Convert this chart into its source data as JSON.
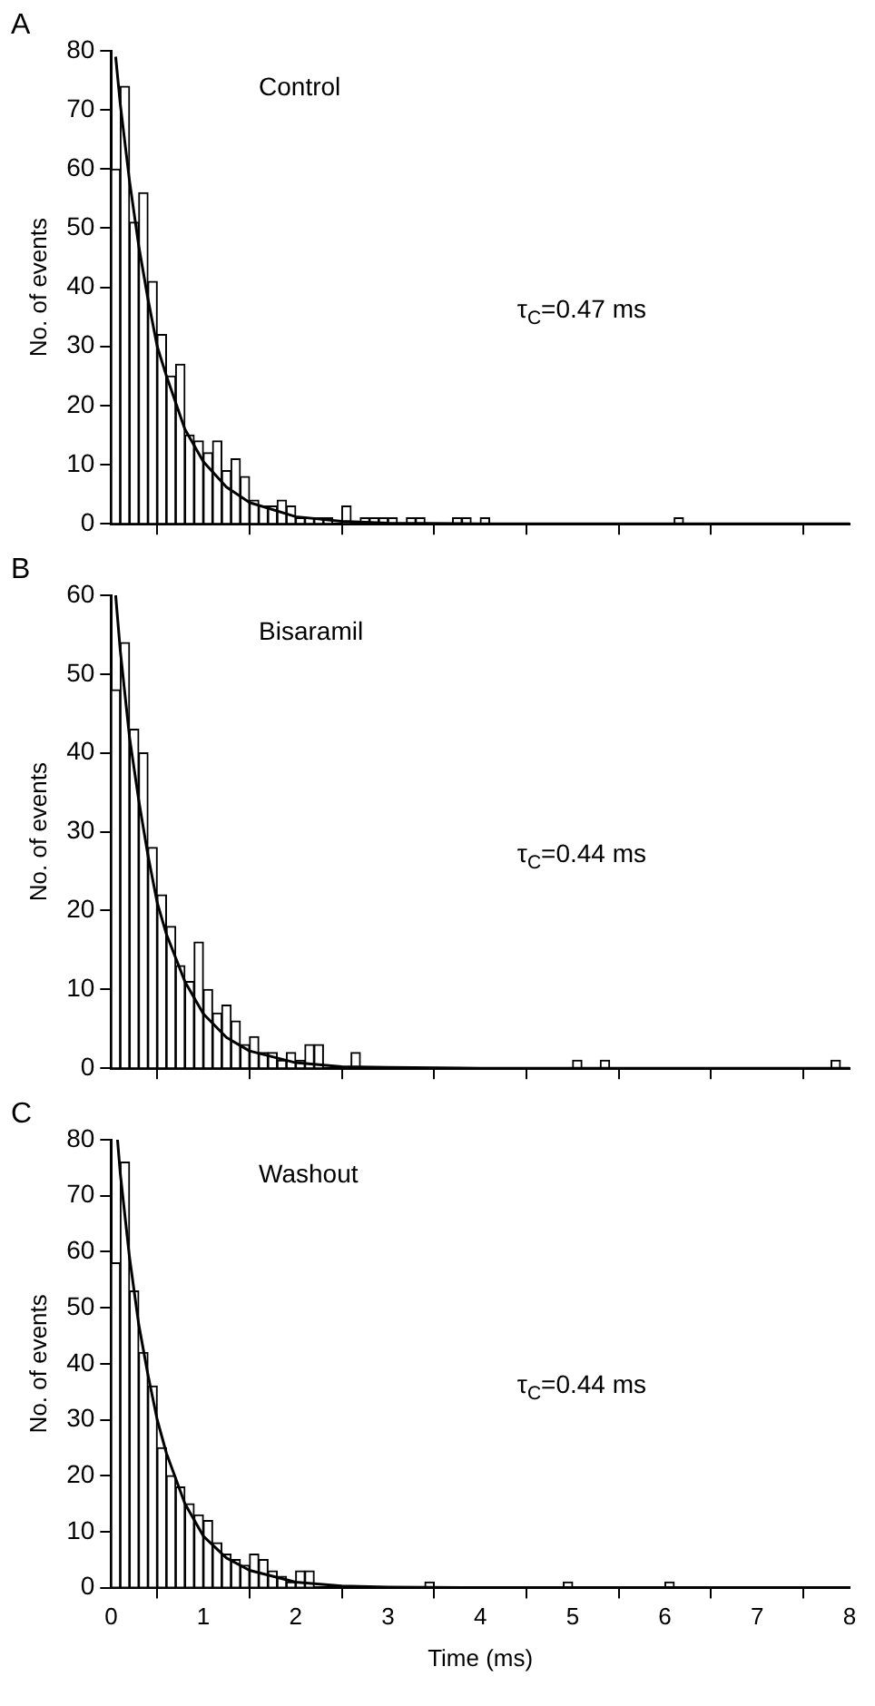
{
  "chart_data": [
    {
      "type": "histogram",
      "title": "A",
      "ylabel": "No. of events",
      "annotations": [
        "Control",
        "τ$_{C}$=0.47 ms"
      ],
      "color": "#ffffff",
      "legend": false,
      "grid": false,
      "tick_labels": "y",
      "xlim": [
        0,
        8
      ],
      "xticks": [
        0,
        1,
        2,
        3,
        4,
        5,
        6,
        7,
        8
      ],
      "ylim": [
        0,
        80
      ],
      "yticks": [
        0,
        10,
        20,
        30,
        40,
        50,
        60,
        70,
        80
      ],
      "bins": [
        0,
        0.1,
        0.2,
        0.3,
        0.4,
        0.5,
        0.6,
        0.7,
        0.8,
        0.9,
        1,
        1.1,
        1.2,
        1.3,
        1.4,
        1.5,
        1.6,
        1.7,
        1.8,
        1.9,
        2,
        2.1,
        2.2,
        2.3,
        2.4,
        2.5,
        2.6,
        2.7,
        2.8,
        2.9,
        3,
        3.1,
        3.2,
        3.3,
        3.4,
        3.5,
        3.6,
        3.7,
        3.8,
        3.9,
        4,
        4.1,
        4.2,
        4.3,
        4.4,
        4.5,
        4.6,
        4.7,
        4.8,
        4.9,
        5,
        5.1,
        5.2,
        5.3,
        5.4,
        5.5,
        5.6,
        5.7,
        5.8,
        5.9,
        6,
        6.1,
        6.2,
        6.3,
        6.4,
        6.5,
        6.6,
        6.7,
        6.8,
        6.9,
        7,
        7.1,
        7.2,
        7.3,
        7.4,
        7.5,
        7.6,
        7.7,
        7.8,
        7.9,
        8
      ],
      "values": [
        60,
        74,
        51,
        56,
        41,
        32,
        25,
        27,
        15,
        14,
        12,
        14,
        9,
        11,
        8,
        4,
        3,
        3,
        4,
        3,
        1,
        1,
        1,
        1,
        0,
        3,
        0,
        1,
        1,
        1,
        1,
        0,
        1,
        1,
        0,
        0,
        0,
        1,
        1,
        0,
        1,
        0,
        0,
        0,
        0,
        0,
        0,
        0,
        0,
        0,
        0,
        0,
        0,
        0,
        0,
        0,
        0,
        0,
        0,
        0,
        0,
        1,
        0,
        0,
        0,
        0,
        0,
        0,
        0,
        0,
        0,
        0,
        0,
        0,
        0,
        0,
        0,
        0,
        0,
        0
      ],
      "series": [
        {
          "type": "line",
          "color": "#000000",
          "x": [
            0.05,
            0.1,
            0.2,
            0.3,
            0.4,
            0.5,
            0.6,
            0.8,
            1,
            1.25,
            1.5,
            2,
            2.5,
            3,
            4,
            6,
            8
          ],
          "values": [
            79,
            71,
            58,
            47,
            38,
            30,
            25,
            16,
            10.5,
            6.2,
            3.6,
            1.2,
            0.4,
            0.1,
            0,
            0,
            0
          ]
        }
      ]
    },
    {
      "type": "histogram",
      "title": "B",
      "ylabel": "No. of events",
      "annotations": [
        "Bisaramil",
        "τ$_{C}$=0.44 ms"
      ],
      "color": "#ffffff",
      "legend": false,
      "grid": false,
      "tick_labels": "y",
      "xlim": [
        0,
        8
      ],
      "xticks": [
        0,
        1,
        2,
        3,
        4,
        5,
        6,
        7,
        8
      ],
      "ylim": [
        0,
        60
      ],
      "yticks": [
        0,
        10,
        20,
        30,
        40,
        50,
        60
      ],
      "bins": [
        0,
        0.1,
        0.2,
        0.3,
        0.4,
        0.5,
        0.6,
        0.7,
        0.8,
        0.9,
        1,
        1.1,
        1.2,
        1.3,
        1.4,
        1.5,
        1.6,
        1.7,
        1.8,
        1.9,
        2,
        2.1,
        2.2,
        2.3,
        2.4,
        2.5,
        2.6,
        2.7,
        2.8,
        2.9,
        3,
        3.1,
        3.2,
        3.3,
        3.4,
        3.5,
        3.6,
        3.7,
        3.8,
        3.9,
        4,
        4.1,
        4.2,
        4.3,
        4.4,
        4.5,
        4.6,
        4.7,
        4.8,
        4.9,
        5,
        5.1,
        5.2,
        5.3,
        5.4,
        5.5,
        5.6,
        5.7,
        5.8,
        5.9,
        6,
        6.1,
        6.2,
        6.3,
        6.4,
        6.5,
        6.6,
        6.7,
        6.8,
        6.9,
        7,
        7.1,
        7.2,
        7.3,
        7.4,
        7.5,
        7.6,
        7.7,
        7.8,
        7.9,
        8
      ],
      "values": [
        48,
        54,
        43,
        40,
        28,
        22,
        18,
        13,
        11,
        16,
        10,
        7,
        8,
        6,
        3,
        4,
        2,
        2,
        1,
        2,
        1,
        3,
        3,
        0,
        0,
        0,
        2,
        0,
        0,
        0,
        0,
        0,
        0,
        0,
        0,
        0,
        0,
        0,
        0,
        0,
        0,
        0,
        0,
        0,
        0,
        0,
        0,
        0,
        0,
        0,
        1,
        0,
        0,
        1,
        0,
        0,
        0,
        0,
        0,
        0,
        0,
        0,
        0,
        0,
        0,
        0,
        0,
        0,
        0,
        0,
        0,
        0,
        0,
        0,
        0,
        0,
        0,
        0,
        1,
        0
      ],
      "series": [
        {
          "type": "line",
          "color": "#000000",
          "x": [
            0.05,
            0.1,
            0.2,
            0.3,
            0.4,
            0.5,
            0.6,
            0.8,
            1,
            1.25,
            1.5,
            2,
            2.5,
            3,
            4,
            6,
            8
          ],
          "values": [
            60,
            53,
            42,
            34,
            27,
            21,
            17,
            11,
            6.9,
            3.9,
            2.2,
            0.7,
            0.2,
            0.1,
            0,
            0,
            0
          ]
        }
      ]
    },
    {
      "type": "histogram",
      "title": "C",
      "xlabel": "Time (ms)",
      "ylabel": "No. of events",
      "annotations": [
        "Washout",
        "τ$_{C}$=0.44 ms"
      ],
      "color": "#ffffff",
      "legend": false,
      "grid": false,
      "xlim": [
        0,
        8
      ],
      "xticks": [
        0,
        1,
        2,
        3,
        4,
        5,
        6,
        7,
        8
      ],
      "ylim": [
        0,
        80
      ],
      "yticks": [
        0,
        10,
        20,
        30,
        40,
        50,
        60,
        70,
        80
      ],
      "bins": [
        0,
        0.1,
        0.2,
        0.3,
        0.4,
        0.5,
        0.6,
        0.7,
        0.8,
        0.9,
        1,
        1.1,
        1.2,
        1.3,
        1.4,
        1.5,
        1.6,
        1.7,
        1.8,
        1.9,
        2,
        2.1,
        2.2,
        2.3,
        2.4,
        2.5,
        2.6,
        2.7,
        2.8,
        2.9,
        3,
        3.1,
        3.2,
        3.3,
        3.4,
        3.5,
        3.6,
        3.7,
        3.8,
        3.9,
        4,
        4.1,
        4.2,
        4.3,
        4.4,
        4.5,
        4.6,
        4.7,
        4.8,
        4.9,
        5,
        5.1,
        5.2,
        5.3,
        5.4,
        5.5,
        5.6,
        5.7,
        5.8,
        5.9,
        6,
        6.1,
        6.2,
        6.3,
        6.4,
        6.5,
        6.6,
        6.7,
        6.8,
        6.9,
        7,
        7.1,
        7.2,
        7.3,
        7.4,
        7.5,
        7.6,
        7.7,
        7.8,
        7.9,
        8
      ],
      "values": [
        58,
        76,
        53,
        42,
        36,
        25,
        20,
        18,
        15,
        13,
        12,
        8,
        6,
        5,
        4,
        6,
        5,
        3,
        2,
        1,
        3,
        3,
        0,
        0,
        0,
        0,
        0,
        0,
        0,
        0,
        0,
        0,
        0,
        0,
        1,
        0,
        0,
        0,
        0,
        0,
        0,
        0,
        0,
        0,
        0,
        0,
        0,
        0,
        0,
        1,
        0,
        0,
        0,
        0,
        0,
        0,
        0,
        0,
        0,
        0,
        1,
        0,
        0,
        0,
        0,
        0,
        0,
        0,
        0,
        0,
        0,
        0,
        0,
        0,
        0,
        0,
        0,
        0,
        0,
        0
      ],
      "series": [
        {
          "type": "line",
          "color": "#000000",
          "x": [
            0.07,
            0.1,
            0.2,
            0.3,
            0.4,
            0.5,
            0.6,
            0.8,
            1,
            1.25,
            1.5,
            2,
            2.5,
            3,
            4,
            6,
            8
          ],
          "values": [
            80,
            74,
            59,
            47,
            38,
            30,
            24,
            15,
            9.2,
            5.3,
            3.1,
            1,
            0.3,
            0.1,
            0,
            0,
            0
          ]
        }
      ]
    }
  ]
}
